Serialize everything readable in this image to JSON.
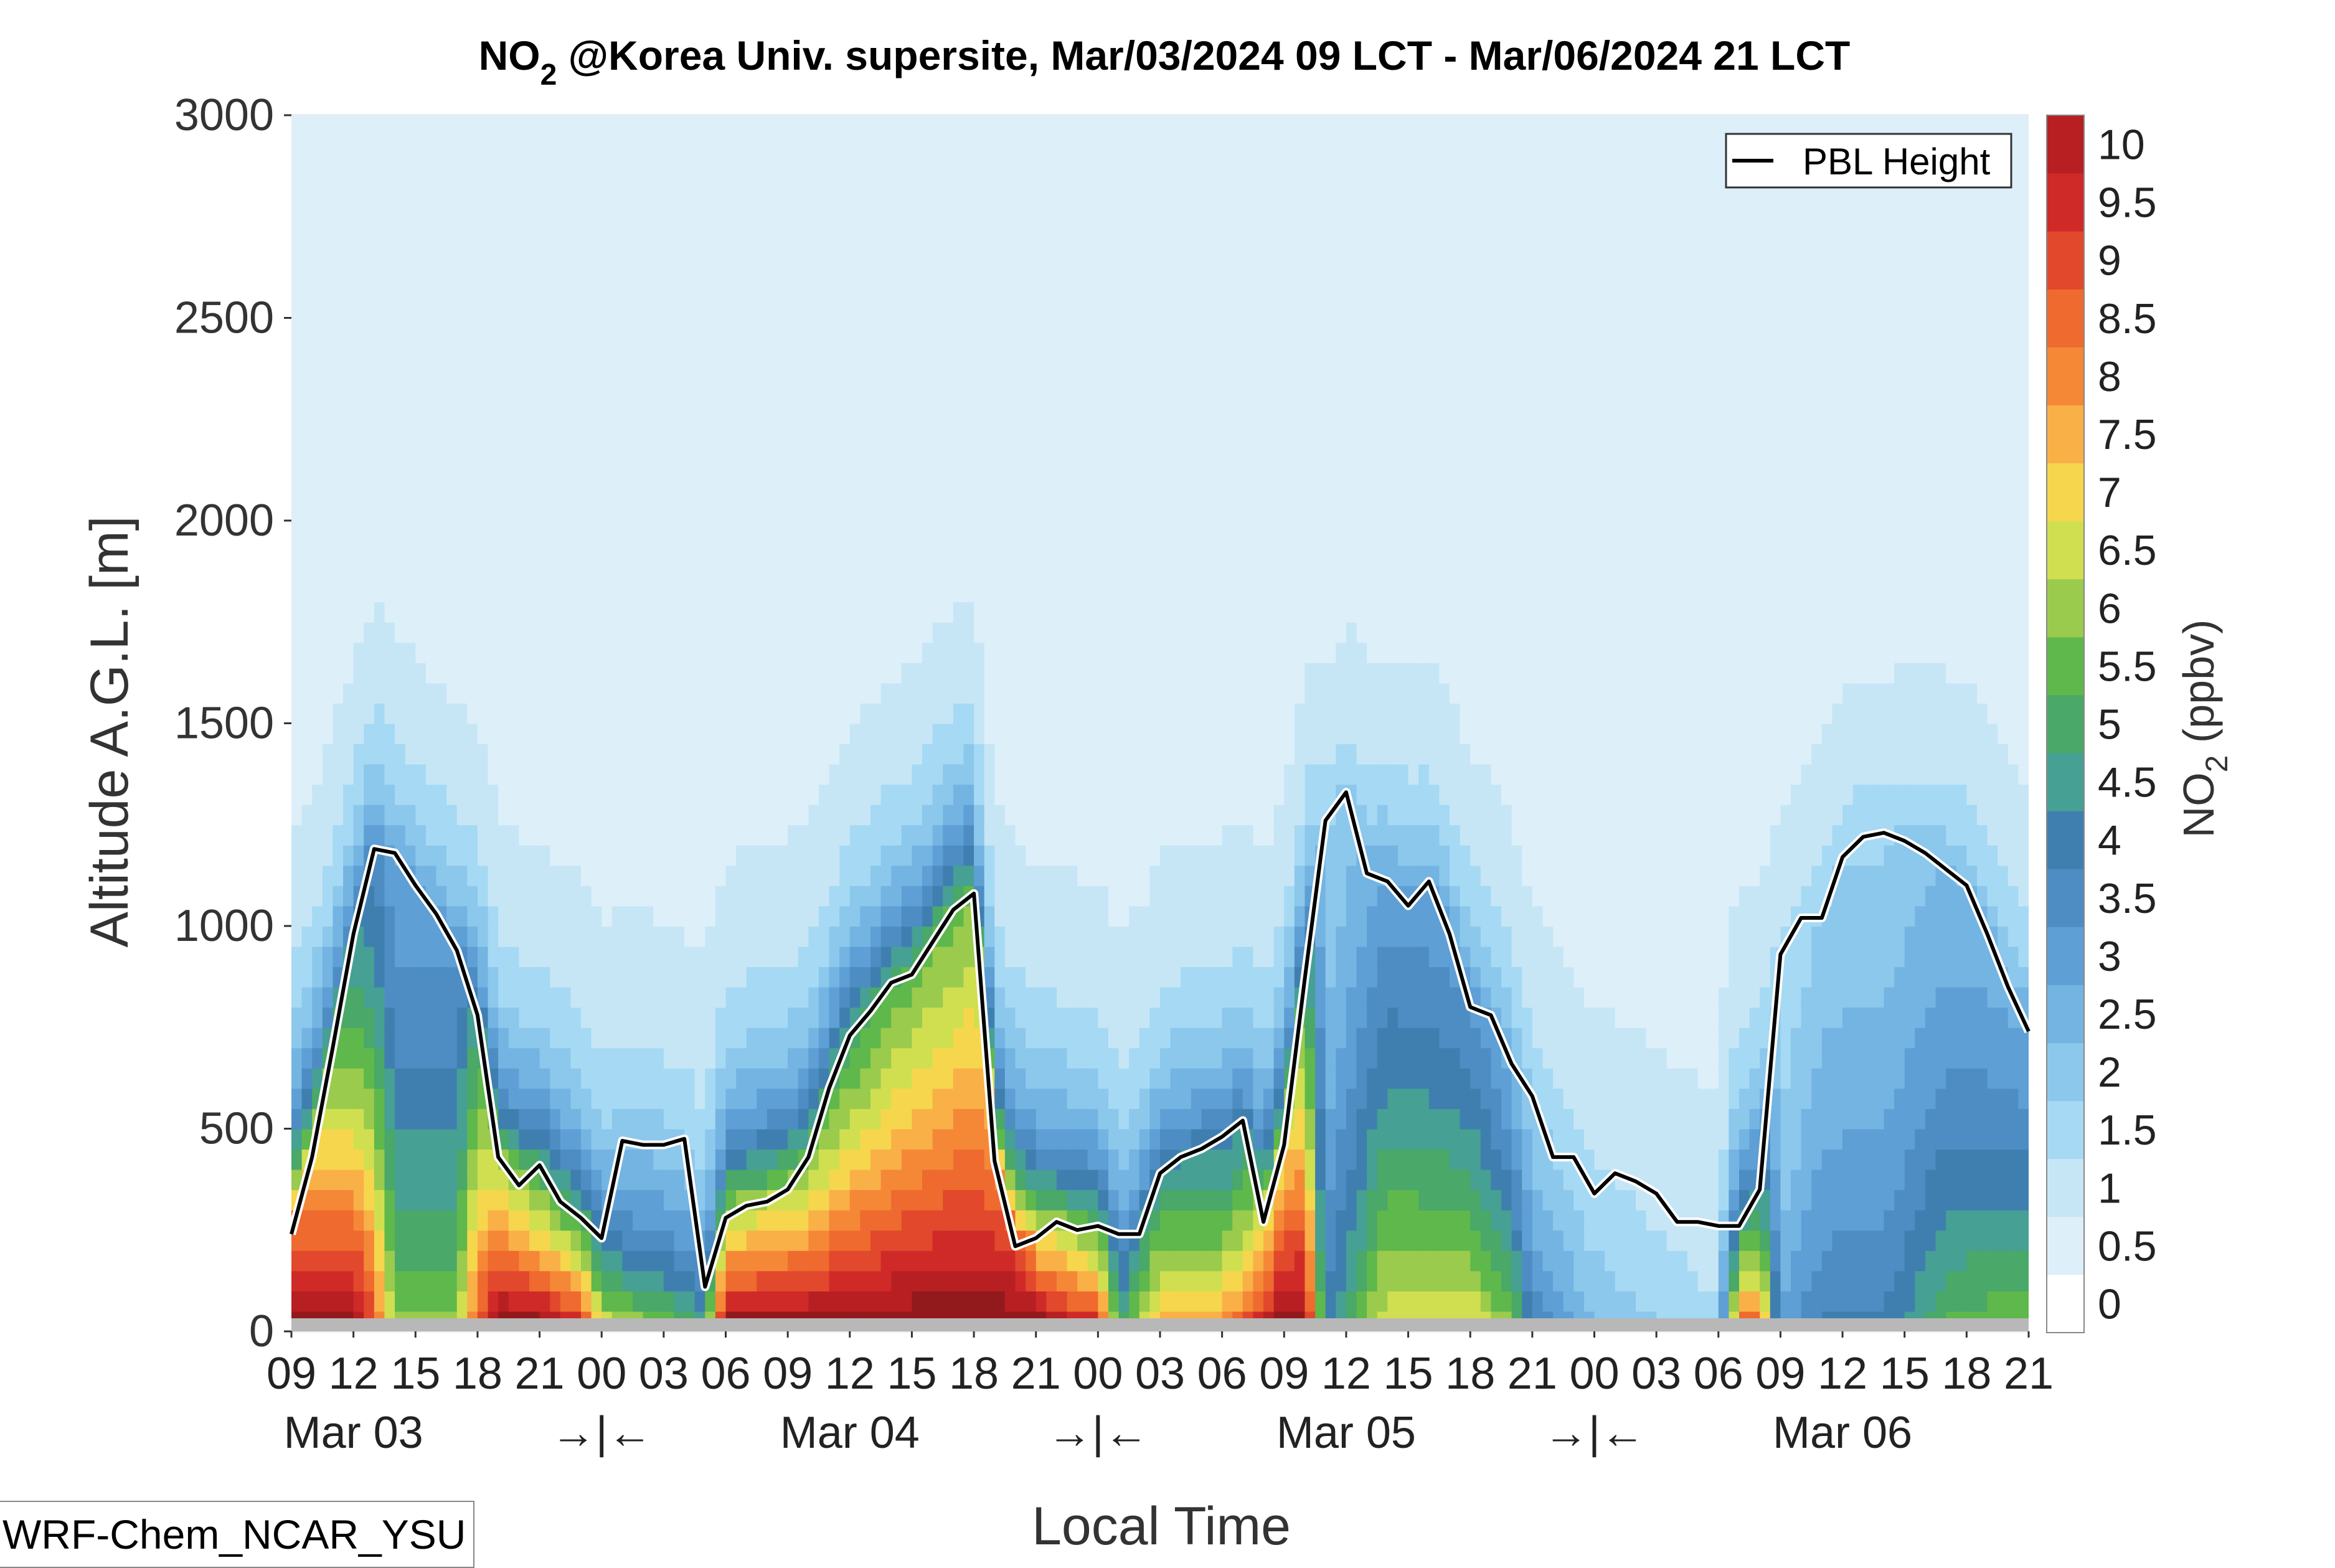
{
  "chart_data": {
    "type": "heatmap",
    "title": "NO2 @Korea Univ. supersite, Mar/03/2024 09 LCT - Mar/06/2024 21 LCT",
    "title_parts": {
      "prefix": "NO",
      "subscript": "2",
      "suffix": " @Korea Univ. supersite, Mar/03/2024 09 LCT - Mar/06/2024 21 LCT"
    },
    "xlabel": "Local Time",
    "ylabel": "Altitude A.G.L. [m]",
    "ylim": [
      0,
      3000
    ],
    "xlim_hours": [
      0,
      84
    ],
    "y_ticks": [
      0,
      500,
      1000,
      1500,
      2000,
      2500,
      3000
    ],
    "x_hour_ticks": [
      "09",
      "12",
      "15",
      "18",
      "21",
      "00",
      "03",
      "06",
      "09",
      "12",
      "15",
      "18",
      "21",
      "00",
      "03",
      "06",
      "09",
      "12",
      "15",
      "18",
      "21",
      "00",
      "03",
      "06",
      "09",
      "12",
      "15",
      "18",
      "21"
    ],
    "x_day_labels": [
      {
        "hour": 3,
        "label": "Mar 03"
      },
      {
        "hour": 15,
        "label": "→|←"
      },
      {
        "hour": 27,
        "label": "Mar 04"
      },
      {
        "hour": 39,
        "label": "→|←"
      },
      {
        "hour": 51,
        "label": "Mar 05"
      },
      {
        "hour": 63,
        "label": "→|←"
      },
      {
        "hour": 75,
        "label": "Mar 06"
      }
    ],
    "colorbar": {
      "label_prefix": "NO",
      "label_subscript": "2",
      "label_suffix": " (ppbv)",
      "ticks": [
        "0",
        "0.5",
        "1",
        "1.5",
        "2",
        "2.5",
        "3",
        "3.5",
        "4",
        "4.5",
        "5",
        "5.5",
        "6",
        "6.5",
        "7",
        "7.5",
        "8",
        "8.5",
        "9",
        "9.5",
        "10"
      ],
      "colors": [
        "#ffffff",
        "#ddeff9",
        "#c6e6f6",
        "#a6d9f3",
        "#8cc7ec",
        "#73b4e2",
        "#5e9fd5",
        "#4d8dc3",
        "#3f7fb0",
        "#46a094",
        "#4aa868",
        "#5fb84b",
        "#9acb4d",
        "#d0df50",
        "#f6d64c",
        "#f9b047",
        "#f48837",
        "#ee6a2e",
        "#e2482c",
        "#cf2a28",
        "#b81f22",
        "#931a1c"
      ]
    },
    "legend": {
      "entries": [
        "PBL Height"
      ],
      "placement": "top-right"
    },
    "pbl_height": [
      [
        0,
        240
      ],
      [
        1,
        430
      ],
      [
        2,
        700
      ],
      [
        3,
        980
      ],
      [
        4,
        1190
      ],
      [
        5,
        1180
      ],
      [
        6,
        1100
      ],
      [
        7,
        1030
      ],
      [
        8,
        940
      ],
      [
        9,
        780
      ],
      [
        10,
        430
      ],
      [
        11,
        360
      ],
      [
        12,
        410
      ],
      [
        13,
        320
      ],
      [
        14,
        280
      ],
      [
        15,
        230
      ],
      [
        16,
        470
      ],
      [
        17,
        460
      ],
      [
        18,
        460
      ],
      [
        19,
        475
      ],
      [
        20,
        110
      ],
      [
        21,
        280
      ],
      [
        22,
        310
      ],
      [
        23,
        320
      ],
      [
        24,
        350
      ],
      [
        25,
        430
      ],
      [
        26,
        600
      ],
      [
        27,
        730
      ],
      [
        28,
        790
      ],
      [
        29,
        860
      ],
      [
        30,
        880
      ],
      [
        31,
        960
      ],
      [
        32,
        1040
      ],
      [
        33,
        1080
      ],
      [
        34,
        420
      ],
      [
        35,
        210
      ],
      [
        36,
        230
      ],
      [
        37,
        270
      ],
      [
        38,
        250
      ],
      [
        39,
        260
      ],
      [
        40,
        240
      ],
      [
        41,
        240
      ],
      [
        42,
        390
      ],
      [
        43,
        430
      ],
      [
        44,
        450
      ],
      [
        45,
        480
      ],
      [
        46,
        520
      ],
      [
        47,
        270
      ],
      [
        48,
        460
      ],
      [
        49,
        870
      ],
      [
        50,
        1260
      ],
      [
        51,
        1330
      ],
      [
        52,
        1130
      ],
      [
        53,
        1110
      ],
      [
        54,
        1050
      ],
      [
        55,
        1110
      ],
      [
        56,
        980
      ],
      [
        57,
        800
      ],
      [
        58,
        780
      ],
      [
        59,
        660
      ],
      [
        60,
        580
      ],
      [
        61,
        430
      ],
      [
        62,
        430
      ],
      [
        63,
        340
      ],
      [
        64,
        390
      ],
      [
        65,
        370
      ],
      [
        66,
        340
      ],
      [
        67,
        270
      ],
      [
        68,
        270
      ],
      [
        69,
        260
      ],
      [
        70,
        260
      ],
      [
        71,
        350
      ],
      [
        72,
        930
      ],
      [
        73,
        1020
      ],
      [
        74,
        1020
      ],
      [
        75,
        1170
      ],
      [
        76,
        1220
      ],
      [
        77,
        1230
      ],
      [
        78,
        1210
      ],
      [
        79,
        1180
      ],
      [
        80,
        1140
      ],
      [
        81,
        1100
      ],
      [
        82,
        980
      ],
      [
        83,
        850
      ],
      [
        84,
        740
      ]
    ],
    "no2_surface_ppbv": [
      [
        0,
        10
      ],
      [
        3,
        10
      ],
      [
        4,
        8
      ],
      [
        5,
        5
      ],
      [
        6,
        5
      ],
      [
        7,
        5
      ],
      [
        8,
        5
      ],
      [
        9,
        8
      ],
      [
        10,
        10
      ],
      [
        12,
        10
      ],
      [
        14,
        9
      ],
      [
        15,
        6
      ],
      [
        18,
        5
      ],
      [
        20,
        4
      ],
      [
        21,
        10
      ],
      [
        33,
        10
      ],
      [
        35,
        10
      ],
      [
        36,
        10
      ],
      [
        39,
        9
      ],
      [
        40,
        4
      ],
      [
        42,
        7
      ],
      [
        45,
        7
      ],
      [
        46,
        8
      ],
      [
        48,
        10
      ],
      [
        49,
        10
      ],
      [
        50,
        3
      ],
      [
        53,
        6
      ],
      [
        55,
        6
      ],
      [
        57,
        6
      ],
      [
        59,
        5
      ],
      [
        60,
        3
      ],
      [
        63,
        1.5
      ],
      [
        66,
        1
      ],
      [
        69,
        0.5
      ],
      [
        70,
        8
      ],
      [
        71,
        8
      ],
      [
        72,
        2
      ],
      [
        74,
        3
      ],
      [
        77,
        3
      ],
      [
        80,
        4.5
      ],
      [
        84,
        5
      ]
    ],
    "no2_profile_decay_m": [
      [
        0,
        700
      ],
      [
        3,
        700
      ],
      [
        5,
        1000
      ],
      [
        8,
        1000
      ],
      [
        9,
        800
      ],
      [
        10,
        500
      ],
      [
        12,
        350
      ],
      [
        15,
        250
      ],
      [
        18,
        250
      ],
      [
        20,
        250
      ],
      [
        21,
        350
      ],
      [
        25,
        450
      ],
      [
        30,
        900
      ],
      [
        33,
        1150
      ],
      [
        35,
        850
      ],
      [
        36,
        350
      ],
      [
        39,
        280
      ],
      [
        40,
        350
      ],
      [
        42,
        450
      ],
      [
        45,
        450
      ],
      [
        47,
        450
      ],
      [
        48,
        700
      ],
      [
        50,
        900
      ],
      [
        53,
        850
      ],
      [
        55,
        800
      ],
      [
        57,
        700
      ],
      [
        59,
        500
      ],
      [
        60,
        400
      ],
      [
        63,
        300
      ],
      [
        66,
        250
      ],
      [
        69,
        250
      ],
      [
        71,
        300
      ],
      [
        72,
        600
      ],
      [
        75,
        900
      ],
      [
        78,
        900
      ],
      [
        81,
        800
      ],
      [
        84,
        600
      ]
    ],
    "footer_label": "WRF-Chem_NCAR_YSU"
  }
}
